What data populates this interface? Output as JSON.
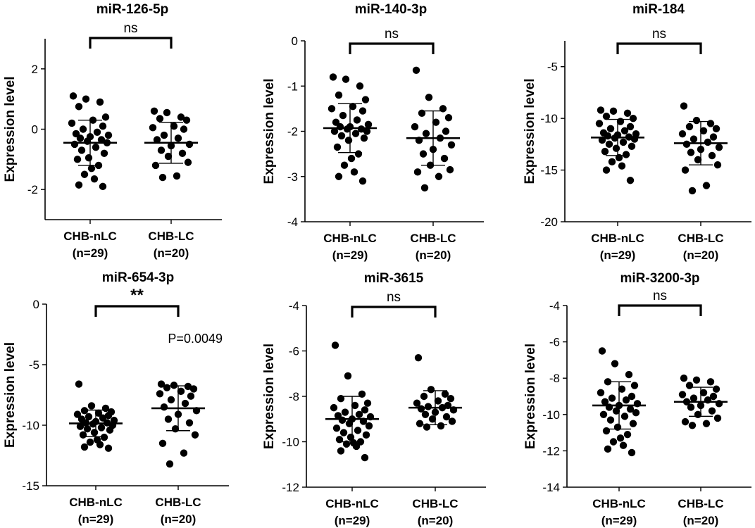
{
  "figure": {
    "ylabel": "Expression level"
  },
  "chart_data": [
    {
      "type": "scatter",
      "title": "miR-126-5p",
      "ylabel": "Expression level",
      "ylim": [
        -3,
        3
      ],
      "yticks": [
        {
          "value": 2,
          "label": "2"
        },
        {
          "value": 0,
          "label": "0"
        },
        {
          "value": -2,
          "label": "-2"
        }
      ],
      "categories": [
        {
          "name": "CHB-nLC",
          "n_label": "(n=29)"
        },
        {
          "name": "CHB-LC",
          "n_label": "(n=20)"
        }
      ],
      "series": [
        {
          "name": "CHB-nLC",
          "mean": -0.45,
          "sd": 0.75,
          "values": [
            1.1,
            1.0,
            0.9,
            0.75,
            0.4,
            0.3,
            0.2,
            0.1,
            0.0,
            -0.1,
            -0.15,
            -0.2,
            -0.25,
            -0.3,
            -0.35,
            -0.4,
            -0.45,
            -0.5,
            -0.6,
            -0.7,
            -0.8,
            -0.95,
            -1.0,
            -1.2,
            -1.3,
            -1.5,
            -1.65,
            -1.85,
            -1.9
          ]
        },
        {
          "name": "CHB-LC",
          "mean": -0.45,
          "sd": 0.68,
          "values": [
            0.6,
            0.55,
            0.4,
            0.35,
            0.3,
            0.1,
            0.05,
            0.0,
            -0.2,
            -0.3,
            -0.35,
            -0.5,
            -0.55,
            -0.7,
            -0.8,
            -0.9,
            -1.1,
            -1.2,
            -1.55,
            -1.6
          ]
        }
      ],
      "annotation": {
        "text": "ns",
        "bold": false
      }
    },
    {
      "type": "scatter",
      "title": "miR-140-3p",
      "ylabel": "Expression level",
      "ylim": [
        -4,
        0
      ],
      "yticks": [
        {
          "value": 0,
          "label": "0"
        },
        {
          "value": -1,
          "label": "-1"
        },
        {
          "value": -2,
          "label": "-2"
        },
        {
          "value": -3,
          "label": "-3"
        },
        {
          "value": -4,
          "label": "-4"
        }
      ],
      "categories": [
        {
          "name": "CHB-nLC",
          "n_label": "(n=29)"
        },
        {
          "name": "CHB-LC",
          "n_label": "(n=20)"
        }
      ],
      "series": [
        {
          "name": "CHB-nLC",
          "mean": -1.93,
          "sd": 0.54,
          "values": [
            -0.8,
            -0.85,
            -1.0,
            -1.2,
            -1.3,
            -1.45,
            -1.5,
            -1.55,
            -1.65,
            -1.75,
            -1.8,
            -1.85,
            -1.9,
            -1.9,
            -1.95,
            -1.95,
            -2.0,
            -2.0,
            -2.05,
            -2.1,
            -2.15,
            -2.2,
            -2.35,
            -2.5,
            -2.6,
            -2.75,
            -2.9,
            -3.0,
            -3.1
          ]
        },
        {
          "name": "CHB-LC",
          "mean": -2.15,
          "sd": 0.6,
          "values": [
            -0.65,
            -1.25,
            -1.5,
            -1.6,
            -1.7,
            -1.8,
            -1.9,
            -2.0,
            -2.05,
            -2.15,
            -2.2,
            -2.3,
            -2.4,
            -2.5,
            -2.6,
            -2.75,
            -2.85,
            -2.9,
            -3.0,
            -3.25
          ]
        }
      ],
      "annotation": {
        "text": "ns",
        "bold": false
      }
    },
    {
      "type": "scatter",
      "title": "miR-184",
      "ylabel": "Expression level",
      "ylim": [
        -20,
        -2.5
      ],
      "yticks": [
        {
          "value": -5,
          "label": "-5"
        },
        {
          "value": -10,
          "label": "-10"
        },
        {
          "value": -15,
          "label": "-15"
        },
        {
          "value": -20,
          "label": "-20"
        }
      ],
      "categories": [
        {
          "name": "CHB-nLC",
          "n_label": "(n=29)"
        },
        {
          "name": "CHB-LC",
          "n_label": "(n=20)"
        }
      ],
      "series": [
        {
          "name": "CHB-nLC",
          "mean": -11.85,
          "sd": 1.75,
          "values": [
            -9.2,
            -9.3,
            -9.5,
            -9.8,
            -10.0,
            -10.3,
            -10.5,
            -10.8,
            -11.0,
            -11.2,
            -11.4,
            -11.5,
            -11.6,
            -11.7,
            -11.8,
            -11.9,
            -12.0,
            -12.1,
            -12.3,
            -12.5,
            -12.7,
            -12.9,
            -13.2,
            -13.5,
            -13.8,
            -14.2,
            -14.6,
            -15.0,
            -16.0
          ]
        },
        {
          "name": "CHB-LC",
          "mean": -12.4,
          "sd": 2.1,
          "values": [
            -8.8,
            -10.2,
            -10.5,
            -10.8,
            -11.0,
            -11.2,
            -11.5,
            -11.8,
            -12.0,
            -12.3,
            -12.5,
            -12.8,
            -13.0,
            -13.3,
            -13.6,
            -14.0,
            -14.5,
            -15.0,
            -16.5,
            -17.0
          ]
        }
      ],
      "annotation": {
        "text": "ns",
        "bold": false
      }
    },
    {
      "type": "scatter",
      "title": "miR-654-3p",
      "ylabel": "Expression level",
      "ylim": [
        -15,
        0
      ],
      "yticks": [
        {
          "value": 0,
          "label": "0"
        },
        {
          "value": -5,
          "label": "-5"
        },
        {
          "value": -10,
          "label": "-10"
        },
        {
          "value": -15,
          "label": "-15"
        }
      ],
      "categories": [
        {
          "name": "CHB-nLC",
          "n_label": "(n=29)"
        },
        {
          "name": "CHB-LC",
          "n_label": "(n=20)"
        }
      ],
      "series": [
        {
          "name": "CHB-nLC",
          "mean": -9.85,
          "sd": 1.1,
          "values": [
            -6.6,
            -8.4,
            -8.6,
            -8.8,
            -8.9,
            -9.0,
            -9.1,
            -9.2,
            -9.3,
            -9.4,
            -9.5,
            -9.6,
            -9.7,
            -9.8,
            -9.8,
            -9.9,
            -10.0,
            -10.1,
            -10.2,
            -10.3,
            -10.4,
            -10.6,
            -10.8,
            -11.0,
            -11.2,
            -11.4,
            -11.6,
            -11.8,
            -11.9
          ]
        },
        {
          "name": "CHB-LC",
          "mean": -8.6,
          "sd": 1.85,
          "values": [
            -6.6,
            -6.7,
            -6.8,
            -6.9,
            -7.0,
            -7.2,
            -7.4,
            -7.6,
            -7.9,
            -8.2,
            -8.5,
            -8.8,
            -9.1,
            -9.5,
            -9.8,
            -10.3,
            -10.8,
            -11.5,
            -12.3,
            -13.2
          ]
        }
      ],
      "annotation": {
        "text": "**",
        "bold": true
      },
      "pvalue_label": "P=0.0049"
    },
    {
      "type": "scatter",
      "title": "miR-3615",
      "ylabel": "Expression level",
      "ylim": [
        -12,
        -4
      ],
      "yticks": [
        {
          "value": -4,
          "label": "-4"
        },
        {
          "value": -6,
          "label": "-6"
        },
        {
          "value": -8,
          "label": "-8"
        },
        {
          "value": -10,
          "label": "-10"
        },
        {
          "value": -12,
          "label": "-12"
        }
      ],
      "categories": [
        {
          "name": "CHB-nLC",
          "n_label": "(n=29)"
        },
        {
          "name": "CHB-LC",
          "n_label": "(n=20)"
        }
      ],
      "series": [
        {
          "name": "CHB-nLC",
          "mean": -9.0,
          "sd": 1.0,
          "values": [
            -5.75,
            -7.1,
            -7.9,
            -8.1,
            -8.3,
            -8.4,
            -8.5,
            -8.6,
            -8.7,
            -8.8,
            -8.85,
            -8.9,
            -9.0,
            -9.05,
            -9.1,
            -9.2,
            -9.3,
            -9.4,
            -9.5,
            -9.6,
            -9.7,
            -9.8,
            -9.9,
            -10.0,
            -10.05,
            -10.1,
            -10.2,
            -10.4,
            -10.7
          ]
        },
        {
          "name": "CHB-LC",
          "mean": -8.5,
          "sd": 0.75,
          "values": [
            -6.3,
            -7.7,
            -7.9,
            -8.0,
            -8.1,
            -8.2,
            -8.3,
            -8.4,
            -8.45,
            -8.5,
            -8.55,
            -8.6,
            -8.7,
            -8.8,
            -8.9,
            -9.0,
            -9.1,
            -9.2,
            -9.3,
            -9.35
          ]
        }
      ],
      "annotation": {
        "text": "ns",
        "bold": false
      }
    },
    {
      "type": "scatter",
      "title": "miR-3200-3p",
      "ylabel": "Expression level",
      "ylim": [
        -14,
        -4
      ],
      "yticks": [
        {
          "value": -4,
          "label": "-4"
        },
        {
          "value": -6,
          "label": "-6"
        },
        {
          "value": -8,
          "label": "-8"
        },
        {
          "value": -10,
          "label": "-10"
        },
        {
          "value": -12,
          "label": "-12"
        },
        {
          "value": -14,
          "label": "-14"
        }
      ],
      "categories": [
        {
          "name": "CHB-nLC",
          "n_label": "(n=29)"
        },
        {
          "name": "CHB-LC",
          "n_label": "(n=20)"
        }
      ],
      "series": [
        {
          "name": "CHB-nLC",
          "mean": -9.5,
          "sd": 1.3,
          "values": [
            -6.5,
            -7.2,
            -7.8,
            -8.2,
            -8.4,
            -8.6,
            -8.8,
            -9.0,
            -9.1,
            -9.2,
            -9.3,
            -9.4,
            -9.5,
            -9.6,
            -9.7,
            -9.8,
            -9.9,
            -10.0,
            -10.1,
            -10.3,
            -10.5,
            -10.7,
            -10.9,
            -11.1,
            -11.3,
            -11.5,
            -11.7,
            -11.9,
            -12.1
          ]
        },
        {
          "name": "CHB-LC",
          "mean": -9.3,
          "sd": 0.8,
          "values": [
            -8.0,
            -8.1,
            -8.2,
            -8.4,
            -8.6,
            -8.8,
            -8.9,
            -9.0,
            -9.1,
            -9.2,
            -9.3,
            -9.4,
            -9.5,
            -9.6,
            -9.8,
            -10.0,
            -10.2,
            -10.4,
            -10.5,
            -10.6
          ]
        }
      ],
      "annotation": {
        "text": "ns",
        "bold": false
      }
    }
  ]
}
